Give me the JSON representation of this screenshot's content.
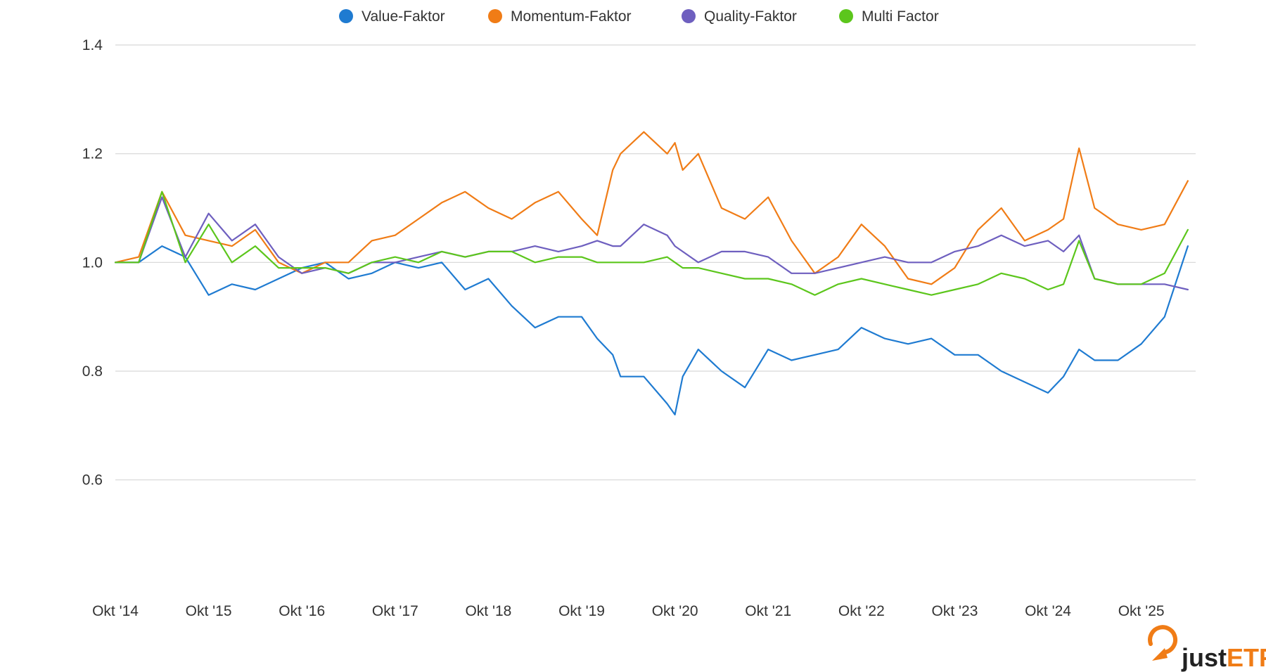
{
  "chart_data": {
    "type": "line",
    "title": "",
    "xlabel": "",
    "ylabel": "",
    "x_tick_labels": [
      "Okt '14",
      "Okt '15",
      "Okt '16",
      "Okt '17",
      "Okt '18",
      "Okt '19",
      "Okt '20",
      "Okt '21",
      "Okt '22",
      "Okt '23",
      "Okt '24",
      "Okt '25"
    ],
    "y_tick_labels": [
      "1.4",
      "1.2",
      "1.0",
      "0.8",
      "0.6"
    ],
    "y_ticks": [
      1.4,
      1.2,
      1.0,
      0.8,
      0.6
    ],
    "ylim": [
      0.5,
      1.4
    ],
    "x_range": [
      "2014-10",
      "2026-05"
    ],
    "grid": "horizontal",
    "legend_position": "top-center",
    "series": [
      {
        "name": "Value-Faktor",
        "color": "#1f7bd1",
        "x": [
          "2014-10",
          "2015-01",
          "2015-04",
          "2015-07",
          "2015-10",
          "2016-01",
          "2016-04",
          "2016-07",
          "2016-10",
          "2017-01",
          "2017-04",
          "2017-07",
          "2017-10",
          "2018-01",
          "2018-04",
          "2018-07",
          "2018-10",
          "2019-01",
          "2019-04",
          "2019-07",
          "2019-10",
          "2019-12",
          "2020-02",
          "2020-03",
          "2020-06",
          "2020-09",
          "2020-10",
          "2020-11",
          "2021-01",
          "2021-04",
          "2021-07",
          "2021-10",
          "2022-01",
          "2022-04",
          "2022-07",
          "2022-10",
          "2023-01",
          "2023-04",
          "2023-07",
          "2023-10",
          "2024-01",
          "2024-04",
          "2024-07",
          "2024-10",
          "2024-12",
          "2025-02",
          "2025-04",
          "2025-07",
          "2025-10",
          "2026-01",
          "2026-04"
        ],
        "values": [
          1.0,
          1.0,
          1.03,
          1.01,
          0.94,
          0.96,
          0.95,
          0.97,
          0.99,
          1.0,
          0.97,
          0.98,
          1.0,
          0.99,
          1.0,
          0.95,
          0.97,
          0.92,
          0.88,
          0.9,
          0.9,
          0.86,
          0.83,
          0.79,
          0.79,
          0.74,
          0.72,
          0.79,
          0.84,
          0.8,
          0.77,
          0.84,
          0.82,
          0.83,
          0.84,
          0.88,
          0.86,
          0.85,
          0.86,
          0.83,
          0.83,
          0.8,
          0.78,
          0.76,
          0.79,
          0.84,
          0.82,
          0.82,
          0.85,
          0.9,
          1.03
        ]
      },
      {
        "name": "Momentum-Faktor",
        "color": "#f07c16",
        "x": [
          "2014-10",
          "2015-01",
          "2015-04",
          "2015-07",
          "2015-10",
          "2016-01",
          "2016-04",
          "2016-07",
          "2016-10",
          "2017-01",
          "2017-04",
          "2017-07",
          "2017-10",
          "2018-01",
          "2018-04",
          "2018-07",
          "2018-10",
          "2019-01",
          "2019-04",
          "2019-07",
          "2019-10",
          "2019-12",
          "2020-02",
          "2020-03",
          "2020-06",
          "2020-09",
          "2020-10",
          "2020-11",
          "2021-01",
          "2021-04",
          "2021-07",
          "2021-10",
          "2022-01",
          "2022-04",
          "2022-07",
          "2022-10",
          "2023-01",
          "2023-04",
          "2023-07",
          "2023-10",
          "2024-01",
          "2024-04",
          "2024-07",
          "2024-10",
          "2024-12",
          "2025-02",
          "2025-04",
          "2025-07",
          "2025-10",
          "2026-01",
          "2026-04"
        ],
        "values": [
          1.0,
          1.01,
          1.13,
          1.05,
          1.04,
          1.03,
          1.06,
          1.0,
          0.98,
          1.0,
          1.0,
          1.04,
          1.05,
          1.08,
          1.11,
          1.13,
          1.1,
          1.08,
          1.11,
          1.13,
          1.08,
          1.05,
          1.17,
          1.2,
          1.24,
          1.2,
          1.22,
          1.17,
          1.2,
          1.1,
          1.08,
          1.12,
          1.04,
          0.98,
          1.01,
          1.07,
          1.03,
          0.97,
          0.96,
          0.99,
          1.06,
          1.1,
          1.04,
          1.06,
          1.08,
          1.21,
          1.1,
          1.07,
          1.06,
          1.07,
          1.15
        ]
      },
      {
        "name": "Quality-Faktor",
        "color": "#6e5fbf",
        "x": [
          "2014-10",
          "2015-01",
          "2015-04",
          "2015-07",
          "2015-10",
          "2016-01",
          "2016-04",
          "2016-07",
          "2016-10",
          "2017-01",
          "2017-04",
          "2017-07",
          "2017-10",
          "2018-01",
          "2018-04",
          "2018-07",
          "2018-10",
          "2019-01",
          "2019-04",
          "2019-07",
          "2019-10",
          "2019-12",
          "2020-02",
          "2020-03",
          "2020-06",
          "2020-09",
          "2020-10",
          "2020-11",
          "2021-01",
          "2021-04",
          "2021-07",
          "2021-10",
          "2022-01",
          "2022-04",
          "2022-07",
          "2022-10",
          "2023-01",
          "2023-04",
          "2023-07",
          "2023-10",
          "2024-01",
          "2024-04",
          "2024-07",
          "2024-10",
          "2024-12",
          "2025-02",
          "2025-04",
          "2025-07",
          "2025-10",
          "2026-01",
          "2026-04"
        ],
        "values": [
          1.0,
          1.0,
          1.12,
          1.01,
          1.09,
          1.04,
          1.07,
          1.01,
          0.98,
          0.99,
          0.98,
          1.0,
          1.0,
          1.01,
          1.02,
          1.01,
          1.02,
          1.02,
          1.03,
          1.02,
          1.03,
          1.04,
          1.03,
          1.03,
          1.07,
          1.05,
          1.03,
          1.02,
          1.0,
          1.02,
          1.02,
          1.01,
          0.98,
          0.98,
          0.99,
          1.0,
          1.01,
          1.0,
          1.0,
          1.02,
          1.03,
          1.05,
          1.03,
          1.04,
          1.02,
          1.05,
          0.97,
          0.96,
          0.96,
          0.96,
          0.95
        ]
      },
      {
        "name": "Multi Factor",
        "color": "#5cc61c",
        "x": [
          "2014-10",
          "2015-01",
          "2015-04",
          "2015-07",
          "2015-10",
          "2016-01",
          "2016-04",
          "2016-07",
          "2016-10",
          "2017-01",
          "2017-04",
          "2017-07",
          "2017-10",
          "2018-01",
          "2018-04",
          "2018-07",
          "2018-10",
          "2019-01",
          "2019-04",
          "2019-07",
          "2019-10",
          "2019-12",
          "2020-02",
          "2020-03",
          "2020-06",
          "2020-09",
          "2020-10",
          "2020-11",
          "2021-01",
          "2021-04",
          "2021-07",
          "2021-10",
          "2022-01",
          "2022-04",
          "2022-07",
          "2022-10",
          "2023-01",
          "2023-04",
          "2023-07",
          "2023-10",
          "2024-01",
          "2024-04",
          "2024-07",
          "2024-10",
          "2024-12",
          "2025-02",
          "2025-04",
          "2025-07",
          "2025-10",
          "2026-01",
          "2026-04"
        ],
        "values": [
          1.0,
          1.0,
          1.13,
          1.0,
          1.07,
          1.0,
          1.03,
          0.99,
          0.99,
          0.99,
          0.98,
          1.0,
          1.01,
          1.0,
          1.02,
          1.01,
          1.02,
          1.02,
          1.0,
          1.01,
          1.01,
          1.0,
          1.0,
          1.0,
          1.0,
          1.01,
          1.0,
          0.99,
          0.99,
          0.98,
          0.97,
          0.97,
          0.96,
          0.94,
          0.96,
          0.97,
          0.96,
          0.95,
          0.94,
          0.95,
          0.96,
          0.98,
          0.97,
          0.95,
          0.96,
          1.04,
          0.97,
          0.96,
          0.96,
          0.98,
          1.06
        ]
      }
    ]
  },
  "logo": {
    "text_dark": "just",
    "text_accent": "ETF",
    "accent_color": "#f07c16",
    "dark_color": "#222222"
  }
}
